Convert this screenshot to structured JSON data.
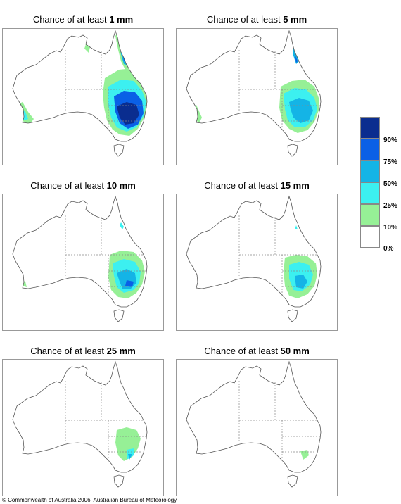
{
  "panels": [
    {
      "prefix": "Chance of at least ",
      "amount": "1 mm",
      "level": 1
    },
    {
      "prefix": "Chance of at least ",
      "amount": "5 mm",
      "level": 5
    },
    {
      "prefix": "Chance of at least ",
      "amount": "10 mm",
      "level": 10
    },
    {
      "prefix": "Chance of at least ",
      "amount": "15 mm",
      "level": 15
    },
    {
      "prefix": "Chance of at least ",
      "amount": "25 mm",
      "level": 25
    },
    {
      "prefix": "Chance of at least ",
      "amount": "50 mm",
      "level": 50
    }
  ],
  "legend": {
    "labels": [
      "90%",
      "75%",
      "50%",
      "25%",
      "10%",
      "0%"
    ],
    "colors": [
      "#0a2d8f",
      "#0a60e6",
      "#14b4e6",
      "#3cf0f0",
      "#96f096",
      "#ffffff"
    ]
  },
  "copyright": "© Commonwealth of Australia 2006, Australian Bureau of Meteorology"
}
